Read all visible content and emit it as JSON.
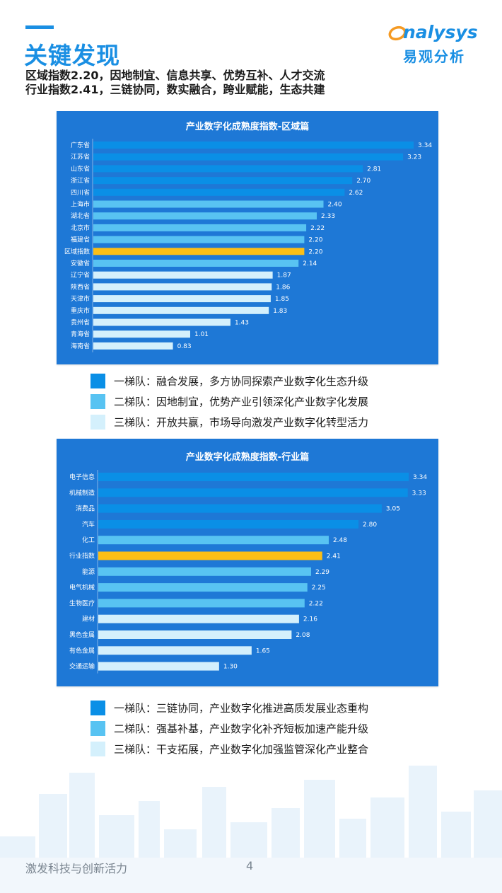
{
  "header": {
    "title": "关键发现",
    "subtitle_line1": "区域指数2.20，因地制宜、信息共享、优势互补、人才交流",
    "subtitle_line2": "行业指数2.41，三链协同，数实融合，跨业赋能，生态共建"
  },
  "logo": {
    "text": "nalysys",
    "text_cn": "易观分析",
    "icon": "analysys-a-swoosh-icon"
  },
  "colors": {
    "accent": "#1a8fe3",
    "panel_bg": "#1e78d6",
    "tier1": "#0a8fe6",
    "tier2": "#58c3f2",
    "tier3": "#d4f0fc",
    "index_highlight": "#fbbf16"
  },
  "chart_data": [
    {
      "type": "bar",
      "orientation": "horizontal",
      "title": "产业数字化成熟度指数-区域篇",
      "categories": [
        "广东省",
        "江苏省",
        "山东省",
        "浙江省",
        "四川省",
        "上海市",
        "湖北省",
        "北京市",
        "福建省",
        "区域指数",
        "安徽省",
        "辽宁省",
        "陕西省",
        "天津市",
        "重庆市",
        "贵州省",
        "青海省",
        "海南省"
      ],
      "values": [
        3.34,
        3.23,
        2.81,
        2.7,
        2.62,
        2.4,
        2.33,
        2.22,
        2.2,
        2.2,
        2.14,
        1.87,
        1.86,
        1.85,
        1.83,
        1.43,
        1.01,
        0.83
      ],
      "value_labels": [
        "3.34",
        "3.23",
        "2.81",
        "2.70",
        "2.62",
        "2.40",
        "2.33",
        "2.22",
        "2.20",
        "2.20",
        "2.14",
        "1.87",
        "1.86",
        "1.85",
        "1.83",
        "1.43",
        "1.01",
        "0.83"
      ],
      "tiers": [
        1,
        1,
        1,
        1,
        1,
        2,
        2,
        2,
        2,
        0,
        2,
        3,
        3,
        3,
        3,
        3,
        3,
        3
      ],
      "xlim": [
        0,
        3.34
      ],
      "grid": false,
      "legend": [
        {
          "label": "一梯队：融合发展，多方协同探索产业数字化生态升级",
          "color": "#0a8fe6"
        },
        {
          "label": "二梯队：因地制宜，优势产业引领深化产业数字化发展",
          "color": "#58c3f2"
        },
        {
          "label": "三梯队：开放共赢，市场导向激发产业数字化转型活力",
          "color": "#d4f0fc"
        }
      ]
    },
    {
      "type": "bar",
      "orientation": "horizontal",
      "title": "产业数字化成熟度指数-行业篇",
      "categories": [
        "电子信息",
        "机械制造",
        "消费品",
        "汽车",
        "化工",
        "行业指数",
        "能源",
        "电气机械",
        "生物医疗",
        "建材",
        "黑色金属",
        "有色金属",
        "交通运输"
      ],
      "values": [
        3.34,
        3.33,
        3.05,
        2.8,
        2.48,
        2.41,
        2.29,
        2.25,
        2.22,
        2.16,
        2.08,
        1.65,
        1.3
      ],
      "value_labels": [
        "3.34",
        "3.33",
        "3.05",
        "2.80",
        "2.48",
        "2.41",
        "2.29",
        "2.25",
        "2.22",
        "2.16",
        "2.08",
        "1.65",
        "1.30"
      ],
      "tiers": [
        1,
        1,
        1,
        1,
        2,
        0,
        2,
        2,
        2,
        3,
        3,
        3,
        3
      ],
      "xlim": [
        0,
        3.34
      ],
      "grid": false,
      "legend": [
        {
          "label": "一梯队：三链协同，产业数字化推进高质发展业态重构",
          "color": "#0a8fe6"
        },
        {
          "label": "二梯队：强基补基，产业数字化补齐短板加速产能升级",
          "color": "#58c3f2"
        },
        {
          "label": "三梯队：干支拓展，产业数字化加强监管深化产业整合",
          "color": "#d4f0fc"
        }
      ]
    }
  ],
  "footer": {
    "text": "激发科技与创新活力",
    "page_number": "4"
  }
}
